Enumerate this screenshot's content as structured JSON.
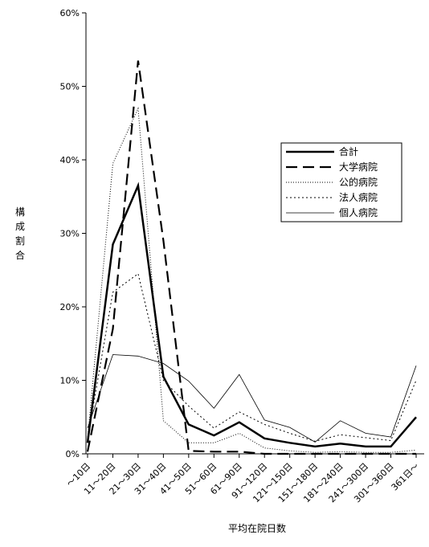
{
  "chart_data": {
    "type": "line",
    "xlabel": "平均在院日数",
    "ylabel": "構成割合",
    "ylim": [
      0,
      60
    ],
    "yticks": [
      0,
      10,
      20,
      30,
      40,
      50,
      60
    ],
    "ytick_labels": [
      "0%",
      "10%",
      "20%",
      "30%",
      "40%",
      "50%",
      "60%"
    ],
    "categories": [
      "～10日",
      "11～20日",
      "21～30日",
      "31～40日",
      "41～50日",
      "51～60日",
      "61～90日",
      "91～120日",
      "121～150日",
      "151～180日",
      "181～240日",
      "241～300日",
      "301～360日",
      "361日～"
    ],
    "grid": false,
    "legend_position": "right",
    "series": [
      {
        "name": "合計",
        "values": [
          1.5,
          28.5,
          36.5,
          10.5,
          4.0,
          2.5,
          4.3,
          2.1,
          1.5,
          1.0,
          1.4,
          1.0,
          1.0,
          5.0
        ]
      },
      {
        "name": "大学病院",
        "values": [
          0.3,
          17.0,
          53.5,
          29.0,
          0.4,
          0.3,
          0.3,
          0.0,
          0.0,
          0.0,
          0.0,
          0.0,
          0.0,
          0.0
        ]
      },
      {
        "name": "公的病院",
        "values": [
          2.0,
          39.5,
          47.0,
          4.5,
          1.5,
          1.5,
          2.8,
          0.8,
          0.4,
          0.2,
          0.3,
          0.2,
          0.2,
          0.5
        ]
      },
      {
        "name": "法人病院",
        "values": [
          2.0,
          22.0,
          24.5,
          10.0,
          6.5,
          3.5,
          5.7,
          4.0,
          2.8,
          1.7,
          2.6,
          2.2,
          1.8,
          10.0
        ]
      },
      {
        "name": "個人病院",
        "values": [
          3.5,
          13.5,
          13.3,
          12.3,
          9.9,
          6.2,
          10.8,
          4.6,
          3.6,
          1.6,
          4.5,
          2.8,
          2.3,
          12.0
        ]
      }
    ],
    "colors": {
      "line": "#000000",
      "background": "#ffffff"
    }
  }
}
